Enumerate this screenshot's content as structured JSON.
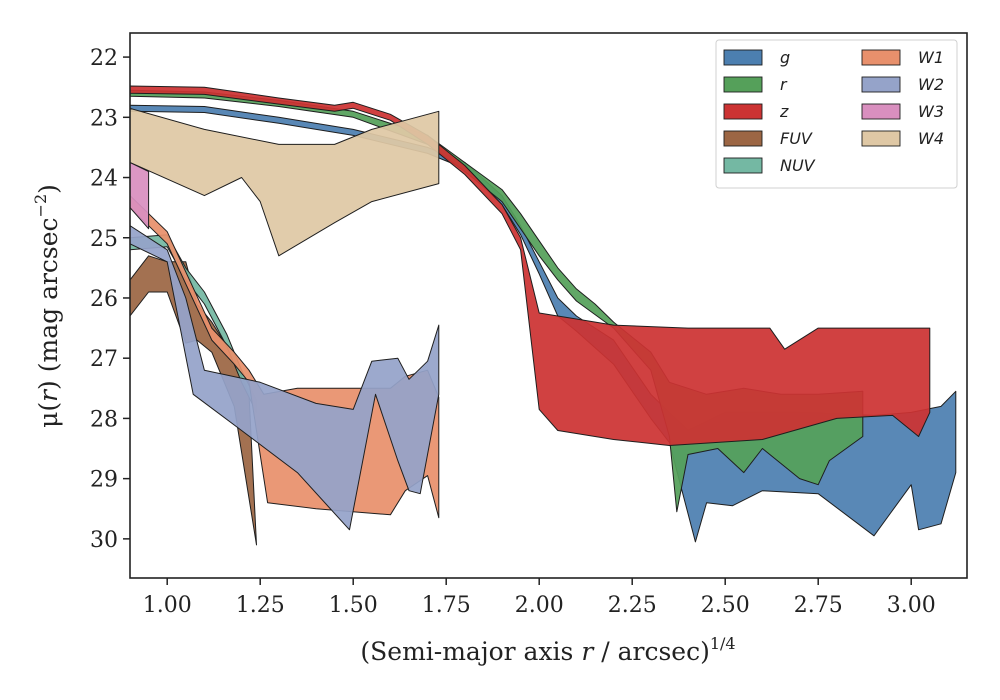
{
  "chart_data": {
    "type": "area",
    "xlabel_main": "(Semi-major axis ",
    "xlabel_var": "r",
    "xlabel_rest": " / arcsec)",
    "xlabel_sup": "1/4",
    "ylabel_main": "μ(",
    "ylabel_var": "r",
    "ylabel_rest": ") (mag arcsec",
    "ylabel_sup": "−2",
    "ylabel_close": ")",
    "xlim": [
      0.9,
      3.15
    ],
    "ylim": [
      30.65,
      21.6
    ],
    "y_inverted": true,
    "grid": false,
    "legend_position": "top-right",
    "x_ticks": [
      1.0,
      1.25,
      1.5,
      1.75,
      2.0,
      2.25,
      2.5,
      2.75,
      3.0
    ],
    "x_tick_labels": [
      "1.00",
      "1.25",
      "1.50",
      "1.75",
      "2.00",
      "2.25",
      "2.50",
      "2.75",
      "3.00"
    ],
    "y_ticks": [
      22,
      23,
      24,
      25,
      26,
      27,
      28,
      29,
      30
    ],
    "y_tick_labels": [
      "22",
      "23",
      "24",
      "25",
      "26",
      "27",
      "28",
      "29",
      "30"
    ],
    "series": [
      {
        "name": "g",
        "color": "#4c7fb0",
        "upper": [
          [
            0.9,
            22.8
          ],
          [
            1.1,
            22.82
          ],
          [
            1.3,
            23.0
          ],
          [
            1.5,
            23.2
          ],
          [
            1.7,
            23.5
          ],
          [
            1.8,
            23.75
          ],
          [
            1.9,
            24.3
          ],
          [
            1.95,
            24.8
          ],
          [
            2.0,
            25.4
          ],
          [
            2.05,
            26.0
          ],
          [
            2.1,
            26.3
          ],
          [
            2.2,
            26.7
          ],
          [
            2.3,
            27.6
          ],
          [
            2.4,
            28.2
          ],
          [
            2.5,
            27.9
          ],
          [
            2.7,
            27.9
          ],
          [
            2.9,
            27.95
          ],
          [
            3.0,
            27.9
          ],
          [
            3.08,
            27.8
          ],
          [
            3.12,
            27.55
          ]
        ],
        "lower": [
          [
            0.9,
            22.9
          ],
          [
            1.1,
            22.92
          ],
          [
            1.3,
            23.1
          ],
          [
            1.5,
            23.3
          ],
          [
            1.7,
            23.6
          ],
          [
            1.8,
            23.85
          ],
          [
            1.9,
            24.45
          ],
          [
            1.95,
            24.95
          ],
          [
            2.0,
            25.6
          ],
          [
            2.05,
            26.3
          ],
          [
            2.1,
            26.55
          ],
          [
            2.2,
            27.1
          ],
          [
            2.3,
            28.0
          ],
          [
            2.35,
            28.4
          ],
          [
            2.42,
            30.05
          ],
          [
            2.45,
            29.4
          ],
          [
            2.52,
            29.45
          ],
          [
            2.6,
            29.2
          ],
          [
            2.75,
            29.25
          ],
          [
            2.9,
            29.95
          ],
          [
            3.0,
            29.1
          ],
          [
            3.02,
            29.85
          ],
          [
            3.08,
            29.75
          ],
          [
            3.12,
            28.9
          ]
        ]
      },
      {
        "name": "r",
        "color": "#55a05a",
        "upper": [
          [
            0.9,
            22.55
          ],
          [
            1.1,
            22.58
          ],
          [
            1.3,
            22.72
          ],
          [
            1.5,
            22.9
          ],
          [
            1.7,
            23.3
          ],
          [
            1.8,
            23.75
          ],
          [
            1.9,
            24.2
          ],
          [
            1.95,
            24.6
          ],
          [
            2.0,
            25.05
          ],
          [
            2.05,
            25.5
          ],
          [
            2.1,
            25.85
          ],
          [
            2.15,
            26.1
          ],
          [
            2.2,
            26.4
          ],
          [
            2.3,
            26.9
          ],
          [
            2.35,
            27.4
          ],
          [
            2.45,
            27.6
          ],
          [
            2.55,
            27.5
          ],
          [
            2.65,
            27.6
          ],
          [
            2.75,
            27.6
          ],
          [
            2.87,
            27.55
          ]
        ],
        "lower": [
          [
            0.9,
            22.65
          ],
          [
            1.1,
            22.68
          ],
          [
            1.3,
            22.82
          ],
          [
            1.5,
            23.0
          ],
          [
            1.7,
            23.45
          ],
          [
            1.8,
            23.9
          ],
          [
            1.9,
            24.4
          ],
          [
            1.95,
            24.85
          ],
          [
            2.0,
            25.3
          ],
          [
            2.05,
            25.7
          ],
          [
            2.1,
            26.05
          ],
          [
            2.2,
            26.5
          ],
          [
            2.3,
            27.2
          ],
          [
            2.35,
            28.3
          ],
          [
            2.37,
            29.55
          ],
          [
            2.4,
            28.6
          ],
          [
            2.48,
            28.5
          ],
          [
            2.55,
            28.9
          ],
          [
            2.6,
            28.5
          ],
          [
            2.7,
            29.0
          ],
          [
            2.75,
            29.1
          ],
          [
            2.78,
            28.7
          ],
          [
            2.87,
            28.3
          ]
        ]
      },
      {
        "name": "z",
        "color": "#cc3333",
        "upper": [
          [
            0.9,
            22.48
          ],
          [
            1.1,
            22.5
          ],
          [
            1.3,
            22.68
          ],
          [
            1.45,
            22.8
          ],
          [
            1.5,
            22.75
          ],
          [
            1.6,
            22.95
          ],
          [
            1.7,
            23.3
          ],
          [
            1.8,
            23.8
          ],
          [
            1.9,
            24.45
          ],
          [
            1.95,
            25.0
          ],
          [
            2.0,
            26.25
          ],
          [
            2.1,
            26.35
          ],
          [
            2.2,
            26.45
          ],
          [
            2.4,
            26.5
          ],
          [
            2.62,
            26.5
          ],
          [
            2.66,
            26.85
          ],
          [
            2.75,
            26.5
          ],
          [
            3.05,
            26.5
          ]
        ],
        "lower": [
          [
            0.9,
            22.6
          ],
          [
            1.1,
            22.62
          ],
          [
            1.3,
            22.78
          ],
          [
            1.45,
            22.9
          ],
          [
            1.5,
            22.85
          ],
          [
            1.6,
            23.05
          ],
          [
            1.7,
            23.45
          ],
          [
            1.8,
            23.95
          ],
          [
            1.9,
            24.6
          ],
          [
            1.95,
            25.2
          ],
          [
            2.0,
            27.85
          ],
          [
            2.05,
            28.2
          ],
          [
            2.2,
            28.35
          ],
          [
            2.35,
            28.45
          ],
          [
            2.6,
            28.35
          ],
          [
            2.8,
            28.0
          ],
          [
            2.95,
            27.95
          ],
          [
            3.02,
            28.3
          ],
          [
            3.05,
            27.9
          ]
        ]
      },
      {
        "name": "FUV",
        "color": "#9c6644",
        "upper": [
          [
            0.9,
            25.7
          ],
          [
            0.95,
            25.3
          ],
          [
            1.0,
            25.4
          ],
          [
            1.05,
            25.4
          ],
          [
            1.08,
            26.1
          ],
          [
            1.12,
            26.4
          ],
          [
            1.18,
            27.0
          ],
          [
            1.22,
            27.6
          ],
          [
            1.24,
            30.1
          ]
        ],
        "lower": [
          [
            0.9,
            26.3
          ],
          [
            0.95,
            25.9
          ],
          [
            1.0,
            25.9
          ],
          [
            1.05,
            26.75
          ],
          [
            1.08,
            26.7
          ],
          [
            1.12,
            26.9
          ],
          [
            1.18,
            27.8
          ],
          [
            1.24,
            30.1
          ]
        ]
      },
      {
        "name": "NUV",
        "color": "#74b8a3",
        "upper": [
          [
            0.9,
            25.0
          ],
          [
            1.0,
            24.95
          ],
          [
            1.05,
            25.5
          ],
          [
            1.1,
            25.9
          ],
          [
            1.16,
            26.6
          ],
          [
            1.2,
            27.2
          ],
          [
            1.24,
            27.7
          ]
        ],
        "lower": [
          [
            0.9,
            25.2
          ],
          [
            1.0,
            25.15
          ],
          [
            1.05,
            25.7
          ],
          [
            1.1,
            26.1
          ],
          [
            1.16,
            26.8
          ],
          [
            1.2,
            27.4
          ],
          [
            1.24,
            27.9
          ]
        ]
      },
      {
        "name": "W1",
        "color": "#e8906c",
        "upper": [
          [
            0.9,
            24.3
          ],
          [
            1.0,
            24.9
          ],
          [
            1.06,
            25.7
          ],
          [
            1.12,
            26.5
          ],
          [
            1.18,
            26.9
          ],
          [
            1.22,
            27.2
          ],
          [
            1.26,
            27.6
          ],
          [
            1.35,
            27.5
          ],
          [
            1.6,
            27.5
          ],
          [
            1.64,
            27.3
          ],
          [
            1.7,
            27.2
          ],
          [
            1.73,
            27.65
          ]
        ],
        "lower": [
          [
            0.9,
            24.5
          ],
          [
            1.0,
            25.1
          ],
          [
            1.06,
            25.9
          ],
          [
            1.12,
            26.7
          ],
          [
            1.18,
            27.1
          ],
          [
            1.22,
            27.4
          ],
          [
            1.27,
            29.4
          ],
          [
            1.4,
            29.5
          ],
          [
            1.6,
            29.6
          ],
          [
            1.64,
            29.2
          ],
          [
            1.7,
            28.95
          ],
          [
            1.73,
            29.65
          ]
        ]
      },
      {
        "name": "W2",
        "color": "#95a3c9",
        "upper": [
          [
            0.9,
            24.8
          ],
          [
            1.0,
            25.2
          ],
          [
            1.05,
            26.0
          ],
          [
            1.1,
            27.2
          ],
          [
            1.25,
            27.4
          ],
          [
            1.4,
            27.75
          ],
          [
            1.5,
            27.85
          ],
          [
            1.55,
            27.05
          ],
          [
            1.62,
            27.0
          ],
          [
            1.65,
            27.35
          ],
          [
            1.7,
            27.05
          ],
          [
            1.73,
            26.45
          ]
        ],
        "lower": [
          [
            0.9,
            25.1
          ],
          [
            1.0,
            25.4
          ],
          [
            1.07,
            27.6
          ],
          [
            1.2,
            28.2
          ],
          [
            1.35,
            28.9
          ],
          [
            1.49,
            29.85
          ],
          [
            1.56,
            27.6
          ],
          [
            1.62,
            28.7
          ],
          [
            1.65,
            29.2
          ],
          [
            1.68,
            29.25
          ],
          [
            1.73,
            27.6
          ]
        ]
      },
      {
        "name": "W3",
        "color": "#d98fbf",
        "upper": [
          [
            0.9,
            23.75
          ],
          [
            0.95,
            23.9
          ]
        ],
        "lower": [
          [
            0.9,
            24.5
          ],
          [
            0.95,
            24.85
          ]
        ]
      },
      {
        "name": "W4",
        "color": "#dfc8a5",
        "upper": [
          [
            0.9,
            22.85
          ],
          [
            1.1,
            23.2
          ],
          [
            1.3,
            23.45
          ],
          [
            1.45,
            23.45
          ],
          [
            1.55,
            23.2
          ],
          [
            1.73,
            22.9
          ]
        ],
        "lower": [
          [
            0.9,
            23.75
          ],
          [
            1.1,
            24.3
          ],
          [
            1.2,
            24.0
          ],
          [
            1.25,
            24.4
          ],
          [
            1.3,
            25.3
          ],
          [
            1.45,
            24.75
          ],
          [
            1.55,
            24.4
          ],
          [
            1.73,
            24.1
          ]
        ]
      }
    ]
  }
}
